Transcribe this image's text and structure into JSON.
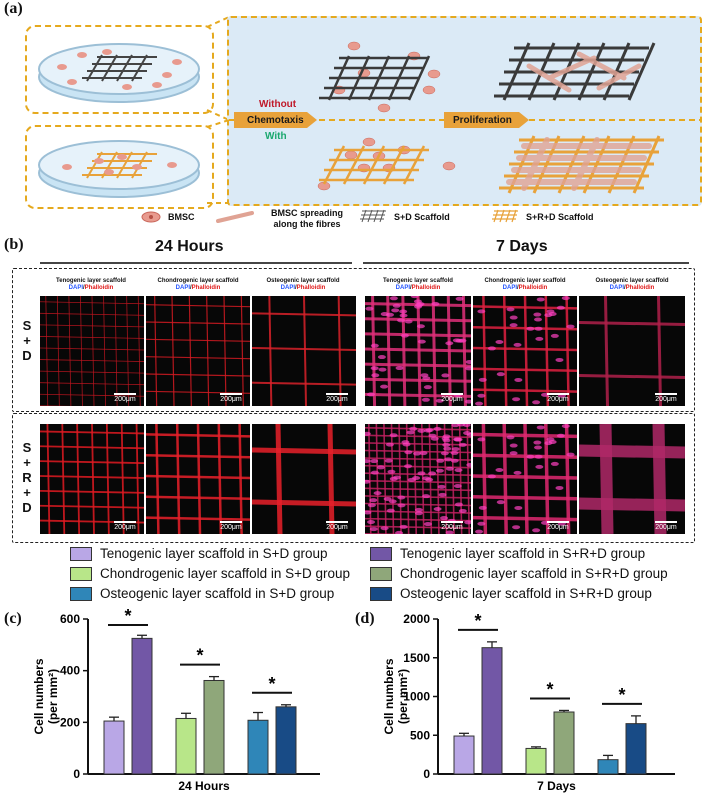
{
  "panels": {
    "a": "(a)",
    "b": "(b)",
    "c": "(c)",
    "d": "(d)"
  },
  "schematic": {
    "without": "Without",
    "chemotaxis": "Chemotaxis",
    "with": "With",
    "proliferation": "Proliferation",
    "legend": {
      "bmsc": "BMSC",
      "spreading": "BMSC spreading along the fibres",
      "sd": "S+D Scaffold",
      "srd": "S+R+D Scaffold"
    },
    "colors": {
      "without": "#c0192a",
      "with": "#1aa86e",
      "dash": "#e5a91e",
      "bg": "#dbeaf6",
      "orange": "#e8a23a",
      "grey": "#3a3a3a"
    }
  },
  "micrographs": {
    "time_24": "24 Hours",
    "time_7": "7 Days",
    "columns": [
      "Tenogenic layer scaffold",
      "Chondrogenic layer scaffold",
      "Osteogenic layer scaffold",
      "Tenogenic layer scaffold",
      "Chondrogenic layer scaffold",
      "Osteogenic layer scaffold"
    ],
    "stain_dapi": "DAPI",
    "stain_phalloidin": "Phalloidin",
    "row_sd": [
      "S",
      "+",
      "D"
    ],
    "row_srd": [
      "S",
      "+",
      "R",
      "+",
      "D"
    ],
    "scale": "200μm"
  },
  "legend": [
    {
      "label": "Tenogenic layer scaffold in S+D group",
      "color": "#b9a7e6"
    },
    {
      "label": "Chondrogenic layer scaffold in S+D group",
      "color": "#b8e689"
    },
    {
      "label": "Osteogenic layer scaffold in S+D group",
      "color": "#2f86b8"
    },
    {
      "label": "Tenogenic layer scaffold in S+R+D group",
      "color": "#7257a6"
    },
    {
      "label": "Chondrogenic layer scaffold in S+R+D group",
      "color": "#8fa77a"
    },
    {
      "label": "Osteogenic layer scaffold in S+R+D group",
      "color": "#184b86"
    }
  ],
  "chart_data": [
    {
      "type": "bar",
      "panel": "(c)",
      "xlabel": "24 Hours",
      "ylabel": "Cell numbers (per mm²)",
      "ylim": [
        0,
        600
      ],
      "yticks": [
        0,
        200,
        400,
        600
      ],
      "values": [
        205,
        525,
        215,
        362,
        208,
        260
      ],
      "errors": [
        15,
        12,
        20,
        15,
        30,
        8
      ],
      "colors": [
        "#b9a7e6",
        "#7257a6",
        "#b8e689",
        "#8fa77a",
        "#2f86b8",
        "#184b86"
      ],
      "significance": [
        "*",
        "*",
        "*"
      ]
    },
    {
      "type": "bar",
      "panel": "(d)",
      "xlabel": "7 Days",
      "ylabel": "Cell numbers (per mm²)",
      "ylim": [
        0,
        2000
      ],
      "yticks": [
        0,
        500,
        1000,
        1500,
        2000
      ],
      "values": [
        490,
        1630,
        330,
        800,
        185,
        650
      ],
      "errors": [
        35,
        75,
        20,
        20,
        55,
        100
      ],
      "colors": [
        "#b9a7e6",
        "#7257a6",
        "#b8e689",
        "#8fa77a",
        "#2f86b8",
        "#184b86"
      ],
      "significance": [
        "*",
        "*",
        "*"
      ]
    }
  ]
}
